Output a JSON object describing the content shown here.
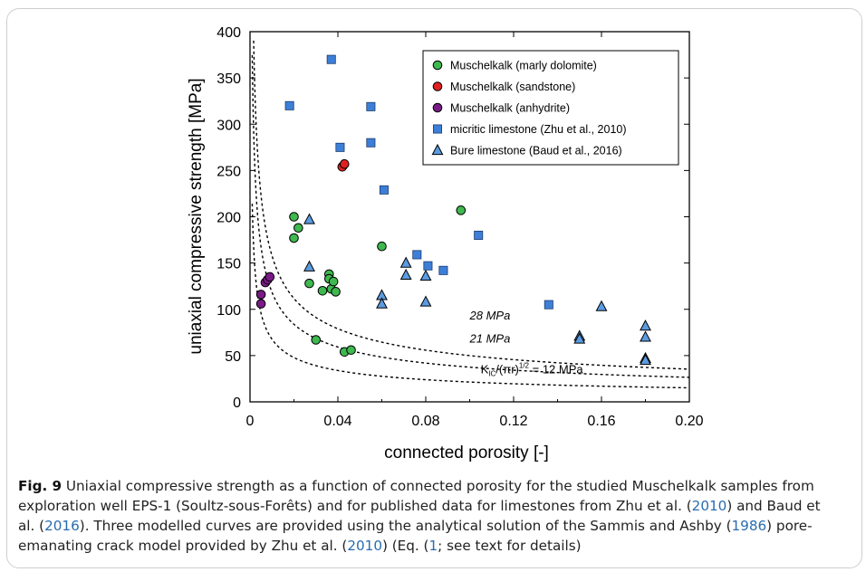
{
  "chart_data": {
    "type": "scatter",
    "xlabel": "connected porosity [-]",
    "ylabel": "uniaxial compressive strength [MPa]",
    "xlim": [
      0,
      0.2
    ],
    "ylim": [
      0,
      400
    ],
    "xticks": [
      0,
      0.04,
      0.08,
      0.12,
      0.16,
      0.2
    ],
    "xtick_labels": [
      "0",
      "0.04",
      "0.08",
      "0.12",
      "0.16",
      "0.20"
    ],
    "yticks": [
      0,
      50,
      100,
      150,
      200,
      250,
      300,
      350,
      400
    ],
    "ytick_labels": [
      "0",
      "50",
      "100",
      "150",
      "200",
      "250",
      "300",
      "350",
      "400"
    ],
    "grid": false,
    "legend_position": "top-right",
    "series": [
      {
        "name": "Muschelkalk (marly dolomite)",
        "marker": "circle",
        "color": "#3fb84f",
        "points": [
          [
            0.02,
            200
          ],
          [
            0.02,
            177
          ],
          [
            0.022,
            188
          ],
          [
            0.027,
            128
          ],
          [
            0.033,
            120
          ],
          [
            0.036,
            138
          ],
          [
            0.036,
            133
          ],
          [
            0.037,
            122
          ],
          [
            0.038,
            130
          ],
          [
            0.039,
            119
          ],
          [
            0.06,
            168
          ],
          [
            0.03,
            67
          ],
          [
            0.043,
            54
          ],
          [
            0.046,
            56
          ],
          [
            0.096,
            207
          ]
        ]
      },
      {
        "name": "Muschelkalk (sandstone)",
        "marker": "circle",
        "color": "#e02020",
        "points": [
          [
            0.042,
            254
          ],
          [
            0.043,
            257
          ]
        ]
      },
      {
        "name": "Muschelkalk (anhydrite)",
        "marker": "circle",
        "color": "#7a1a86",
        "points": [
          [
            0.005,
            106
          ],
          [
            0.005,
            116
          ],
          [
            0.007,
            129
          ],
          [
            0.008,
            132
          ],
          [
            0.009,
            135
          ]
        ]
      },
      {
        "name": "micritic limestone (Zhu et al., 2010)",
        "marker": "square",
        "color": "#3d7fd8",
        "points": [
          [
            0.037,
            370
          ],
          [
            0.018,
            320
          ],
          [
            0.055,
            319
          ],
          [
            0.041,
            275
          ],
          [
            0.055,
            280
          ],
          [
            0.061,
            229
          ],
          [
            0.104,
            180
          ],
          [
            0.076,
            159
          ],
          [
            0.081,
            147
          ],
          [
            0.088,
            142
          ],
          [
            0.136,
            105
          ]
        ]
      },
      {
        "name": "Bure limestone (Baud et al., 2016)",
        "marker": "triangle",
        "color": "#5b9be0",
        "points": [
          [
            0.027,
            197
          ],
          [
            0.027,
            146
          ],
          [
            0.06,
            115
          ],
          [
            0.06,
            106
          ],
          [
            0.071,
            150
          ],
          [
            0.071,
            137
          ],
          [
            0.08,
            136
          ],
          [
            0.08,
            108
          ],
          [
            0.15,
            71
          ],
          [
            0.15,
            68
          ],
          [
            0.16,
            103
          ],
          [
            0.18,
            82
          ],
          [
            0.18,
            70
          ],
          [
            0.18,
            47
          ],
          [
            0.18,
            45
          ]
        ]
      }
    ],
    "curves": [
      {
        "name": "28 MPa",
        "kic": 28,
        "label_x": 0.1,
        "label_y": 89
      },
      {
        "name": "21 MPa",
        "kic": 21,
        "label_x": 0.1,
        "label_y": 64
      },
      {
        "name": "12 MPa",
        "kic": 12,
        "label_x": 0.105,
        "label_y": 31
      }
    ],
    "curve_labels": {
      "c28": "28 MPa",
      "c21": "21 MPa",
      "c12_prefix": "K",
      "c12_sub": "IC",
      "c12_mid": "/(πr)",
      "c12_sup": "1/2",
      "c12_suffix": " = 12 MPa"
    }
  },
  "caption": {
    "label": "Fig. 9",
    "p1": "  Uniaxial compressive strength as a function of connected porosity for the studied Muschelkalk samples from exploration well EPS-1 (Soultz-sous-Forêts) and for published data for limestones from Zhu et al. (",
    "r1": "2010",
    "p2": ") and Baud et al. (",
    "r2": "2016",
    "p3": "). Three modelled curves are provided using the analytical solution of the Sammis and Ashby (",
    "r3": "1986",
    "p4": ") pore-emanating crack model provided by Zhu et al. (",
    "r4": "2010",
    "p5": ") (Eq. (",
    "r5": "1",
    "p6": "; see text for details)"
  }
}
